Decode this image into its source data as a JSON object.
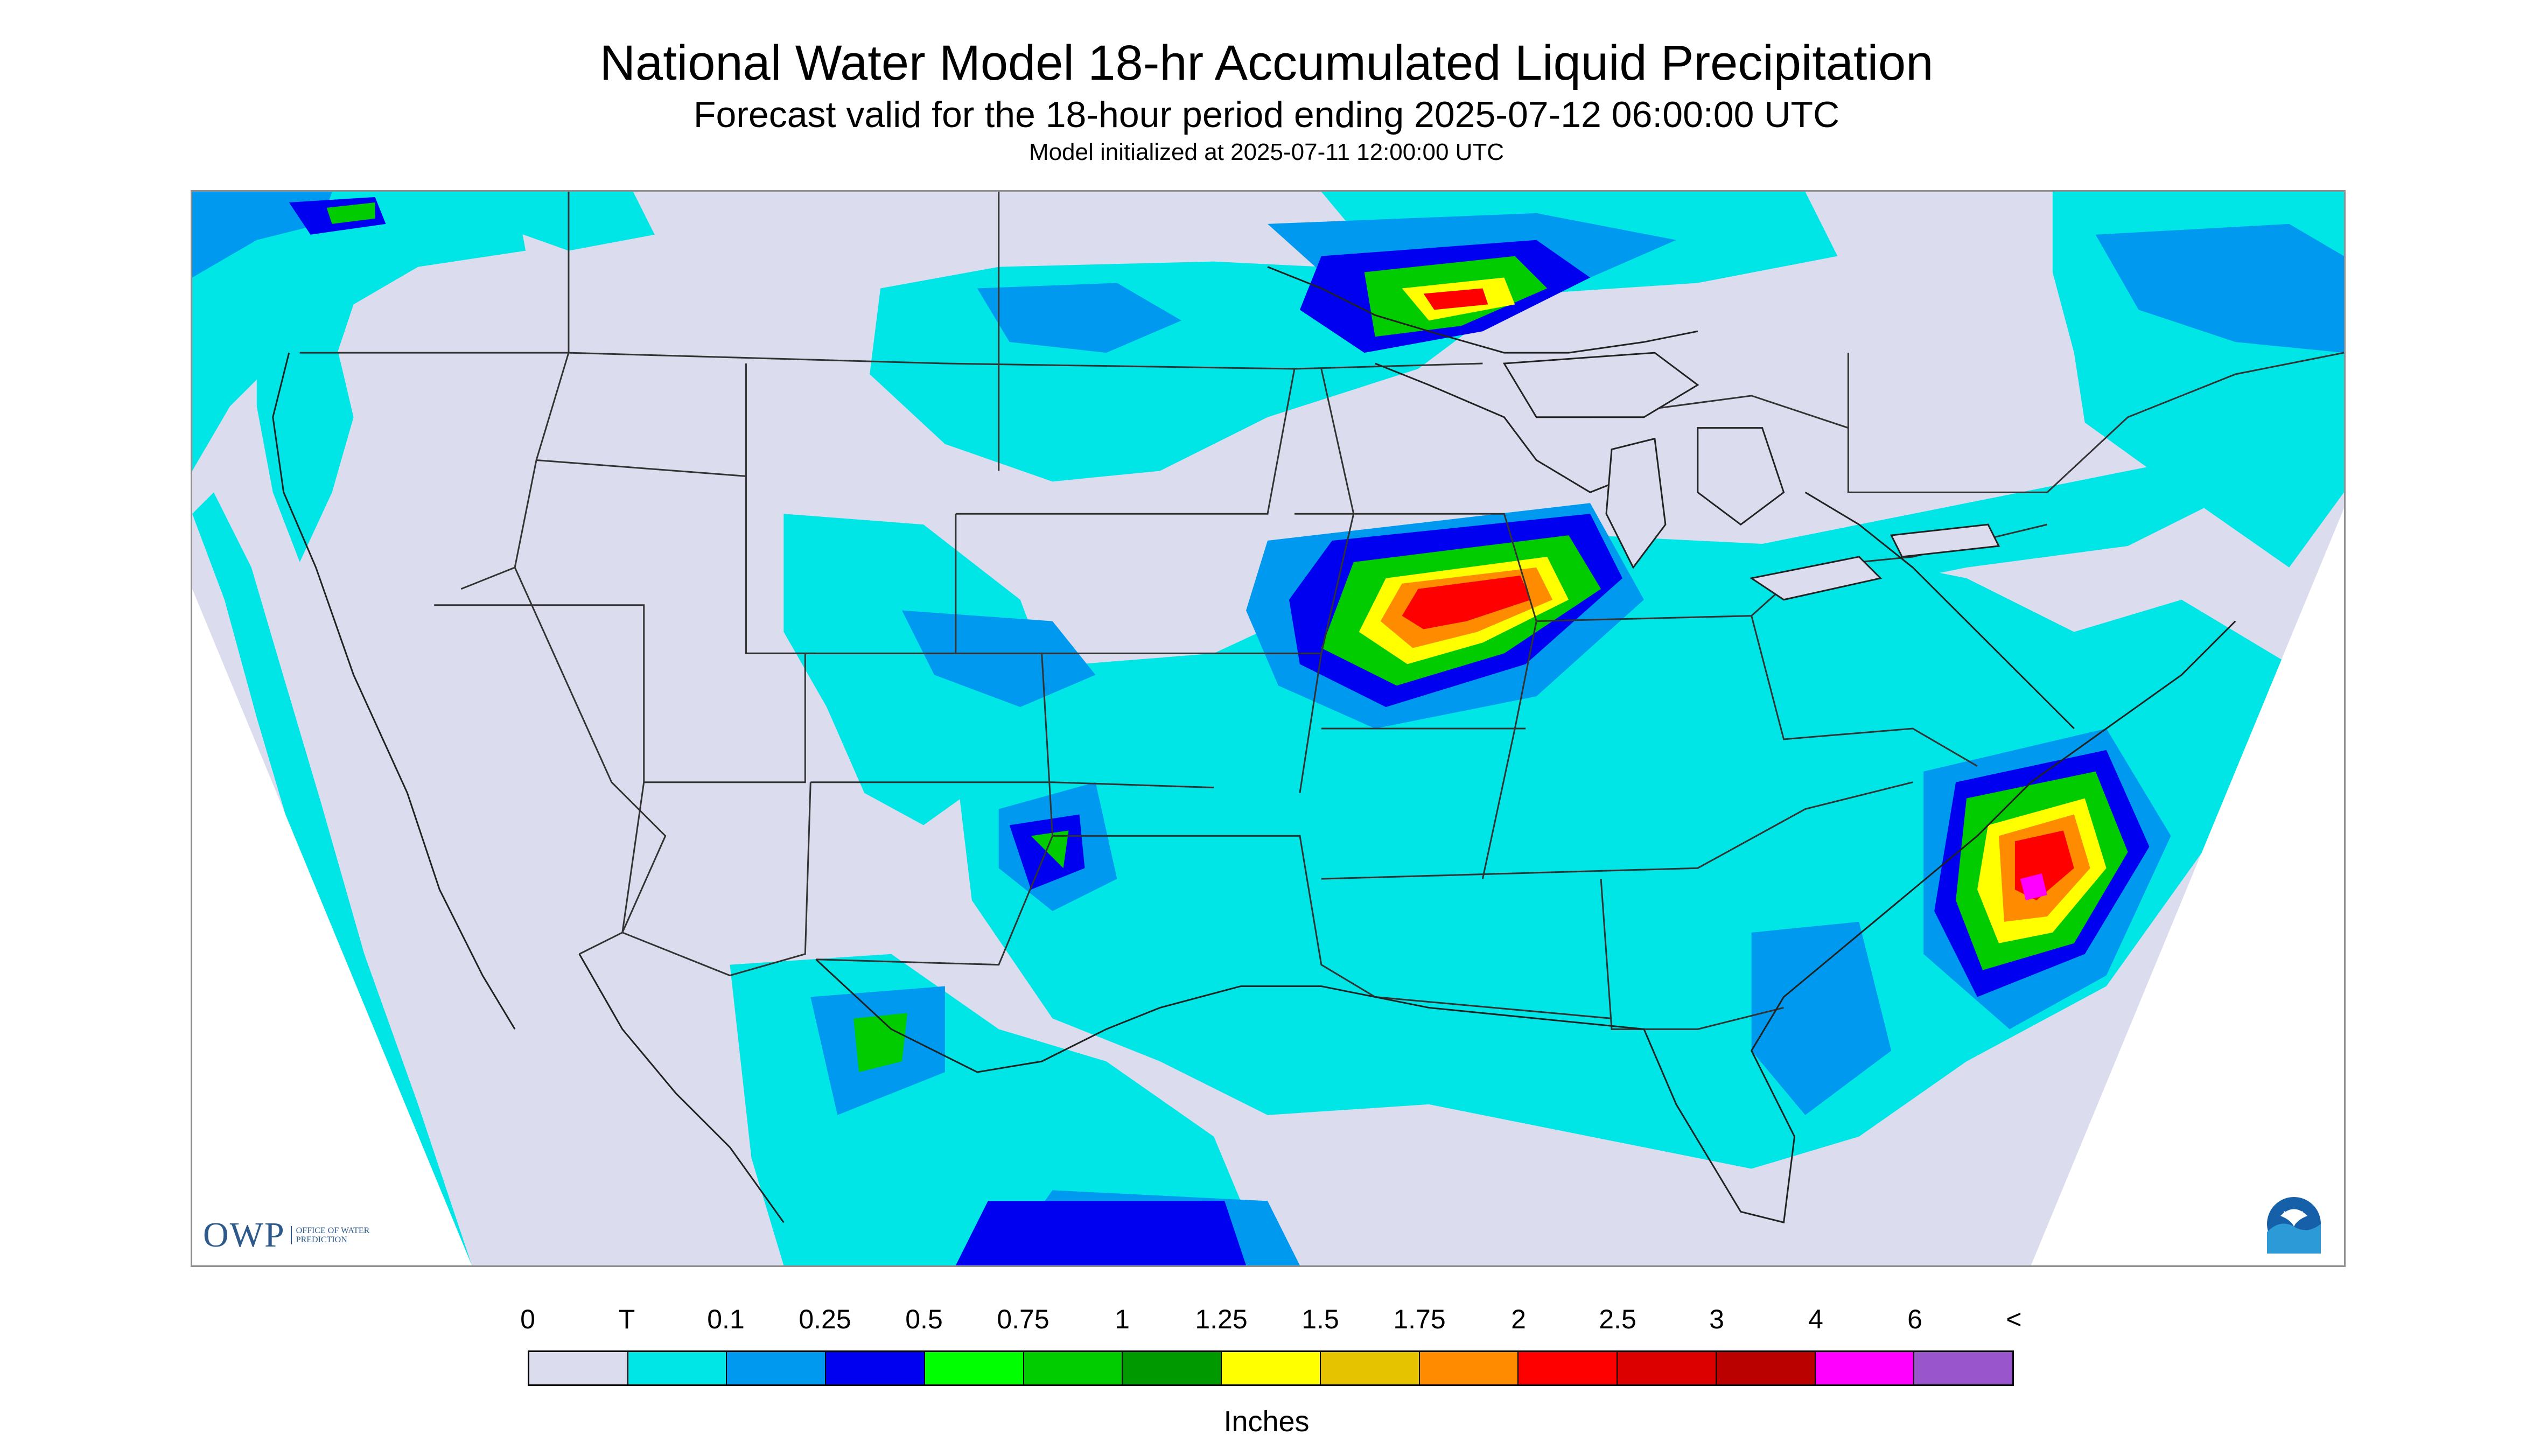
{
  "header": {
    "title": "National Water Model 18-hr Accumulated Liquid Precipitation",
    "subtitle": "Forecast valid for the 18-hour period ending 2025-07-12 06:00:00 UTC",
    "init_line": "Model initialized at 2025-07-11 12:00:00 UTC"
  },
  "logos": {
    "owp_letters": "OWP",
    "owp_subtext": "OFFICE OF WATER PREDICTION",
    "noaa": "NOAA"
  },
  "legend": {
    "tick_labels": [
      "0",
      "T",
      "0.1",
      "0.25",
      "0.5",
      "0.75",
      "1",
      "1.25",
      "1.5",
      "1.75",
      "2",
      "2.5",
      "3",
      "4",
      "6",
      "<"
    ],
    "colors": [
      "#dcdcef",
      "#00e6e6",
      "#0099f0",
      "#0000f0",
      "#00ff00",
      "#00cc00",
      "#009900",
      "#ffff00",
      "#e6c300",
      "#ff8c00",
      "#ff0000",
      "#dd0000",
      "#bb0000",
      "#ff00ff",
      "#9955cc"
    ],
    "units": "Inches"
  },
  "map_colors": {
    "no_precip": "#dcdcef",
    "trace": "#00e6e6",
    "light": "#0099f0",
    "moderate": "#0000f0",
    "green": "#00cc00",
    "yellow": "#ffff00",
    "orange": "#ff8c00",
    "red": "#ff0000",
    "magenta": "#ff00ff",
    "boundaries": "#333333"
  }
}
